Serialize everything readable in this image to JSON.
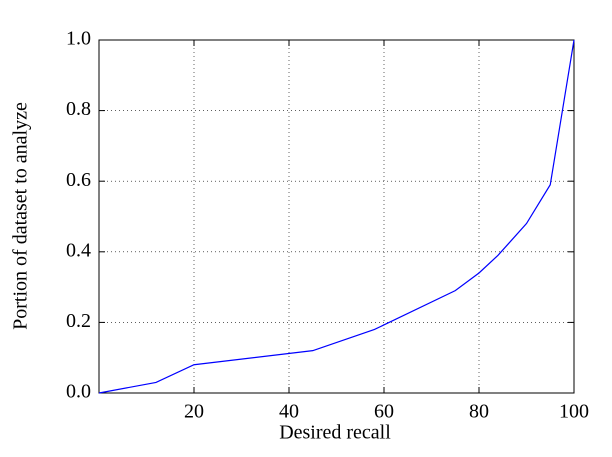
{
  "chart_data": {
    "type": "line",
    "xlabel": "Desired recall",
    "ylabel": "Portion of dataset to analyze",
    "x": [
      0,
      12,
      20,
      45,
      58,
      75,
      80,
      84,
      90,
      95,
      100
    ],
    "series": [
      {
        "color": "#0000ff",
        "values": [
          0,
          0.03,
          0.08,
          0.12,
          0.18,
          0.29,
          0.34,
          0.39,
          0.48,
          0.59,
          1.0
        ]
      }
    ],
    "xlim": [
      0,
      100
    ],
    "xticks": [
      20,
      40,
      60,
      80,
      100
    ],
    "ylim": [
      0,
      1
    ],
    "yticks": [
      {
        "value": 0,
        "label": "0.0"
      },
      0.2,
      0.4,
      0.6,
      0.8,
      {
        "value": 1,
        "label": "1.0"
      }
    ],
    "grid": true
  }
}
